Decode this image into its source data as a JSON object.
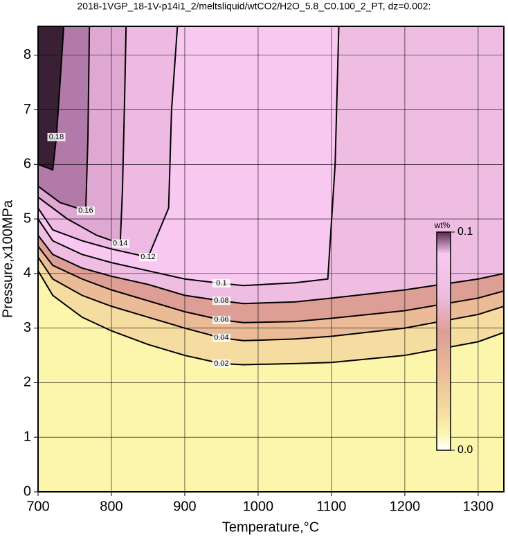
{
  "chart_data": {
    "type": "contour",
    "title": "2018-1VGP_18-1V-p14i1_2/meltsliquid/wtCO2/H2O_5.8_C0.100_2_PT, dz=0.002:",
    "x_label": "Temperature,°C",
    "y_label": "Pressure,x100MPa",
    "xlim": [
      700,
      1335
    ],
    "ylim": [
      0,
      8.53
    ],
    "xticks": [
      700,
      800,
      900,
      1000,
      1100,
      1200,
      1300
    ],
    "yticks": [
      0,
      1,
      2,
      3,
      4,
      5,
      6,
      7,
      8
    ],
    "grid": true,
    "base_color": "#fbf6ab",
    "contours": [
      {
        "level": 0.02,
        "color": "#f5dca0",
        "x": [
          700,
          720,
          760,
          800,
          850,
          900,
          950,
          980,
          1050,
          1100,
          1200,
          1300,
          1335
        ],
        "y": [
          4.05,
          3.6,
          3.2,
          2.95,
          2.7,
          2.5,
          2.35,
          2.33,
          2.35,
          2.37,
          2.5,
          2.75,
          2.92
        ]
      },
      {
        "level": 0.04,
        "color": "#ebbb98",
        "x": [
          700,
          720,
          760,
          800,
          850,
          900,
          950,
          980,
          1050,
          1100,
          1200,
          1300,
          1335
        ],
        "y": [
          4.3,
          3.9,
          3.6,
          3.4,
          3.2,
          3.0,
          2.82,
          2.77,
          2.8,
          2.85,
          3.0,
          3.25,
          3.4
        ]
      },
      {
        "level": 0.06,
        "color": "#dc9e95",
        "x": [
          700,
          720,
          760,
          800,
          850,
          900,
          950,
          980,
          1050,
          1100,
          1200,
          1300,
          1335
        ],
        "y": [
          4.5,
          4.15,
          3.9,
          3.7,
          3.5,
          3.3,
          3.15,
          3.1,
          3.12,
          3.18,
          3.32,
          3.55,
          3.68
        ]
      },
      {
        "level": 0.08,
        "color": "#efbde2",
        "x": [
          700,
          720,
          760,
          800,
          850,
          900,
          950,
          980,
          1050,
          1100,
          1200,
          1300,
          1335
        ],
        "y": [
          4.7,
          4.35,
          4.1,
          3.95,
          3.8,
          3.6,
          3.5,
          3.45,
          3.48,
          3.55,
          3.7,
          3.9,
          4.0
        ]
      },
      {
        "level": 0.1,
        "color": "#f9c8f0",
        "x": [
          700,
          720,
          760,
          800,
          850,
          900,
          950,
          980,
          1050,
          1095,
          1105,
          1110
        ],
        "y": [
          5.0,
          4.6,
          4.35,
          4.2,
          4.05,
          3.9,
          3.82,
          3.78,
          3.83,
          3.9,
          6.0,
          8.53
        ]
      },
      {
        "level": 0.12,
        "color": "#eebae3",
        "x": [
          700,
          720,
          760,
          800,
          850,
          878,
          882,
          890
        ],
        "y": [
          5.2,
          4.8,
          4.6,
          4.45,
          4.3,
          5.2,
          7.0,
          8.53
        ]
      },
      {
        "level": 0.14,
        "color": "#dea8d2",
        "x": [
          700,
          740,
          780,
          812,
          815,
          818,
          820
        ],
        "y": [
          5.4,
          5.0,
          4.7,
          4.55,
          5.5,
          7.2,
          8.53
        ]
      },
      {
        "level": 0.16,
        "color": "#b27aa9",
        "x": [
          700,
          730,
          765,
          768,
          770
        ],
        "y": [
          5.6,
          5.3,
          5.15,
          6.5,
          8.53
        ]
      },
      {
        "level": 0.18,
        "color": "#3a2035",
        "x": [
          700,
          720,
          725,
          730,
          735
        ],
        "y": [
          6.0,
          5.9,
          6.5,
          7.5,
          8.53
        ]
      }
    ],
    "colorbar": {
      "label": "wt%",
      "clim": [
        0,
        0.1
      ],
      "ticks": [
        {
          "value": 0,
          "label": "0.0"
        },
        0.1
      ]
    }
  }
}
